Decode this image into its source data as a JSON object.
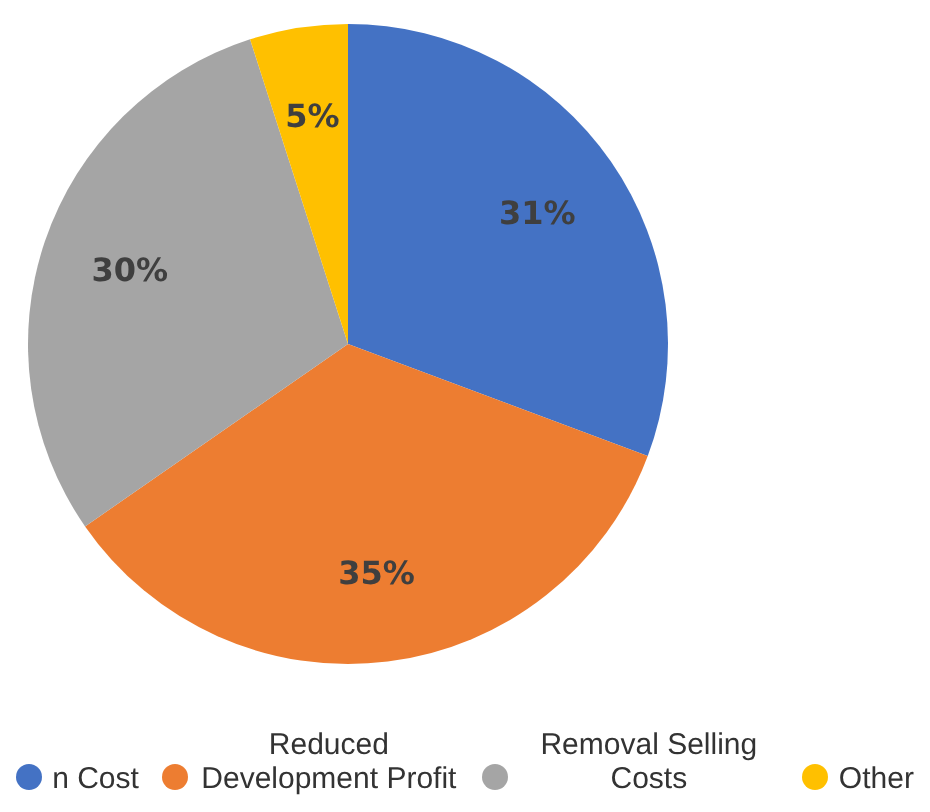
{
  "chart_data": {
    "type": "pie",
    "categories": [
      "n Cost",
      "Reduced Development Profit",
      "Removal Selling Costs",
      "Other"
    ],
    "values": [
      31,
      35,
      30,
      5
    ],
    "colors": [
      "#4472c4",
      "#ed7d31",
      "#a5a5a5",
      "#ffc000"
    ],
    "value_labels": [
      "31%",
      "35%",
      "30%",
      "5%"
    ],
    "legend": "bottom"
  }
}
